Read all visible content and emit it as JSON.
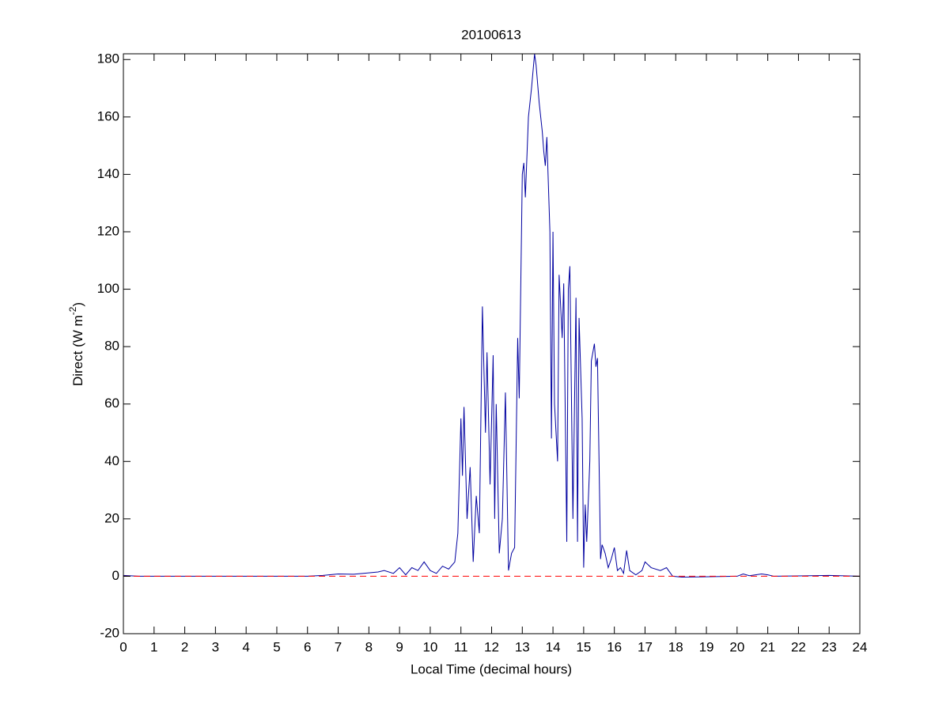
{
  "chart_data": {
    "type": "line",
    "title": "20100613",
    "xlabel": "Local Time (decimal hours)",
    "ylabel_parts": [
      "Direct (W m",
      "-2",
      ")"
    ],
    "xlim": [
      0,
      24
    ],
    "ylim": [
      -20,
      182
    ],
    "xticks": [
      0,
      1,
      2,
      3,
      4,
      5,
      6,
      7,
      8,
      9,
      10,
      11,
      12,
      13,
      14,
      15,
      16,
      17,
      18,
      19,
      20,
      21,
      22,
      23,
      24
    ],
    "yticks": [
      -20,
      0,
      20,
      40,
      60,
      80,
      100,
      120,
      140,
      160,
      180
    ],
    "grid": false,
    "series": [
      {
        "color": "#0000a0",
        "dash": false,
        "x": [
          0,
          0.5,
          6,
          6.5,
          7,
          7.5,
          8,
          8.3,
          8.5,
          8.8,
          9,
          9.2,
          9.4,
          9.6,
          9.8,
          10,
          10.2,
          10.4,
          10.6,
          10.8,
          10.9,
          11.0,
          11.05,
          11.1,
          11.2,
          11.3,
          11.4,
          11.5,
          11.6,
          11.7,
          11.8,
          11.85,
          11.95,
          12.05,
          12.1,
          12.15,
          12.25,
          12.35,
          12.45,
          12.55,
          12.65,
          12.75,
          12.85,
          12.9,
          13.0,
          13.05,
          13.1,
          13.2,
          13.3,
          13.4,
          13.45,
          13.55,
          13.65,
          13.7,
          13.75,
          13.8,
          13.9,
          13.95,
          14.0,
          14.05,
          14.15,
          14.2,
          14.3,
          14.35,
          14.45,
          14.5,
          14.55,
          14.65,
          14.75,
          14.8,
          14.85,
          14.95,
          15.0,
          15.05,
          15.1,
          15.2,
          15.25,
          15.35,
          15.4,
          15.45,
          15.55,
          15.6,
          15.7,
          15.8,
          15.9,
          16.0,
          16.1,
          16.2,
          16.3,
          16.4,
          16.5,
          16.7,
          16.9,
          17.0,
          17.2,
          17.5,
          17.7,
          17.9,
          18.2,
          20,
          20.2,
          20.4,
          20.8,
          21,
          21.2,
          23,
          24
        ],
        "values": [
          0.3,
          0,
          0,
          0.3,
          0.8,
          0.7,
          1.2,
          1.5,
          2,
          1,
          3,
          0.5,
          3,
          2,
          5,
          2,
          1,
          3.5,
          2.5,
          5,
          15,
          55,
          35,
          59,
          20,
          38,
          5,
          28,
          15,
          94,
          50,
          78,
          32,
          77,
          20,
          60,
          8,
          20,
          64,
          2,
          8,
          10,
          83,
          62,
          140,
          144,
          132,
          160,
          170,
          182,
          178,
          165,
          155,
          148,
          143,
          153,
          120,
          48,
          120,
          60,
          40,
          105,
          83,
          102,
          12,
          100,
          108,
          20,
          97,
          12,
          90,
          55,
          3,
          25,
          12,
          40,
          75,
          81,
          73,
          76,
          6,
          11,
          8,
          3,
          6,
          10,
          2,
          3,
          1,
          9,
          2,
          0.5,
          2,
          5,
          3,
          2,
          3,
          0,
          -0.3,
          0,
          0.8,
          0.2,
          0.8,
          0.5,
          0,
          0.3,
          0
        ]
      },
      {
        "color": "#ff0000",
        "dash": true,
        "x": [
          0,
          24
        ],
        "values": [
          0,
          0
        ]
      }
    ]
  }
}
